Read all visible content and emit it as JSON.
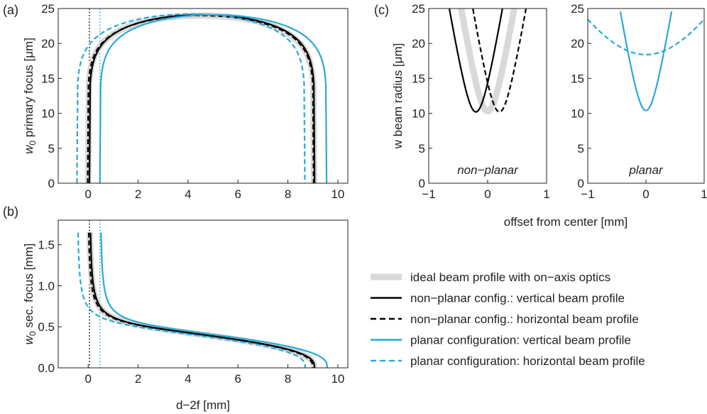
{
  "colors": {
    "ideal": "#d9d9d9",
    "nonplanar": "#000000",
    "planar": "#29a9d6",
    "axis": "#222222"
  },
  "legend": {
    "placement": "bottom-right",
    "items": [
      {
        "label": "ideal beam profile with on−axis optics",
        "color": "#d9d9d9",
        "style": "thick"
      },
      {
        "label": "non−planar config.: vertical beam profile",
        "color": "#000000",
        "style": "solid"
      },
      {
        "label": "non−planar config.: horizontal beam profile",
        "color": "#000000",
        "style": "dashed"
      },
      {
        "label": "planar configuration: vertical beam profile",
        "color": "#29a9d6",
        "style": "solid"
      },
      {
        "label": "planar configuration: horizontal beam profile",
        "color": "#29a9d6",
        "style": "dashed"
      }
    ]
  },
  "chart_data": [
    {
      "panel": "(a)",
      "type": "line",
      "ylabel_sym": "w",
      "ylabel_sub": "0",
      "ylabel_rest": " primary focus [μm]",
      "xlim": [
        -1.2,
        10.4
      ],
      "ylim": [
        0,
        25
      ],
      "xticks": [
        0,
        2,
        4,
        6,
        8,
        10
      ],
      "yticks": [
        0,
        5,
        10,
        15,
        20,
        25
      ],
      "vlines": [
        {
          "x": 0.05,
          "color": "#000000"
        },
        {
          "x": 0.47,
          "color": "#29a9d6"
        }
      ],
      "series": [
        {
          "role": "ideal",
          "color": "#d9d9d9",
          "dash": "solid",
          "x_start": 0.0,
          "x_end": 9.05,
          "peak": 24.0,
          "peak_x": 4.5
        },
        {
          "role": "nonplanar-vertical",
          "color": "#000000",
          "dash": "solid",
          "x_start": 0.05,
          "x_end": 9.07,
          "peak": 24.1,
          "peak_x": 4.55
        },
        {
          "role": "nonplanar-horizontal",
          "color": "#000000",
          "dash": "dashed",
          "x_start": -0.02,
          "x_end": 9.03,
          "peak": 24.0,
          "peak_x": 4.5
        },
        {
          "role": "planar-vertical",
          "color": "#29a9d6",
          "dash": "solid",
          "x_start": 0.47,
          "x_end": 9.55,
          "peak": 24.1,
          "peak_x": 4.7
        },
        {
          "role": "planar-horizontal",
          "color": "#29a9d6",
          "dash": "dashed",
          "x_start": -0.45,
          "x_end": 8.68,
          "peak": 24.2,
          "peak_x": 4.1
        }
      ]
    },
    {
      "panel": "(b)",
      "type": "line",
      "ylabel_sym": "w",
      "ylabel_sub": "0",
      "ylabel_rest": " sec. focus [mm]",
      "xlabel": "d−2f [mm]",
      "xlim": [
        -1.2,
        10.4
      ],
      "ylim": [
        0,
        1.8
      ],
      "xticks": [
        0,
        2,
        4,
        6,
        8,
        10
      ],
      "yticks": [
        0.0,
        0.5,
        1.0,
        1.5
      ],
      "ytick_labels": [
        "0.0",
        "0.5",
        "1.0",
        "1.5"
      ],
      "vlines": [
        {
          "x": 0.05,
          "color": "#000000"
        },
        {
          "x": 0.47,
          "color": "#29a9d6"
        }
      ],
      "series": [
        {
          "role": "ideal",
          "color": "#d9d9d9",
          "dash": "solid",
          "x_start": 0.02,
          "x_end": 9.05
        },
        {
          "role": "nonplanar-vertical",
          "color": "#000000",
          "dash": "solid",
          "x_start": 0.05,
          "x_end": 9.07
        },
        {
          "role": "nonplanar-horizontal",
          "color": "#000000",
          "dash": "dashed",
          "x_start": -0.02,
          "x_end": 9.0
        },
        {
          "role": "planar-vertical",
          "color": "#29a9d6",
          "dash": "solid",
          "x_start": 0.47,
          "x_end": 9.58
        },
        {
          "role": "planar-horizontal",
          "color": "#29a9d6",
          "dash": "dashed",
          "x_start": -0.45,
          "x_end": 8.7
        }
      ]
    },
    {
      "panel": "(c)",
      "subtitle": "non−planar",
      "type": "line",
      "ylabel": "w beam radius [μm]",
      "xlim": [
        -1,
        1
      ],
      "ylim": [
        0,
        25
      ],
      "xticks": [
        -1,
        0,
        1
      ],
      "xtick_labels": [
        "−1",
        "0",
        "1"
      ],
      "yticks": [
        0,
        5,
        10,
        15,
        20,
        25
      ],
      "series": [
        {
          "role": "ideal",
          "color": "#d9d9d9",
          "dash": "solid",
          "center": 0.0,
          "min": 10.3
        },
        {
          "role": "nonplanar-vertical",
          "color": "#000000",
          "dash": "solid",
          "center": -0.2,
          "min": 10.2
        },
        {
          "role": "nonplanar-horizontal",
          "color": "#000000",
          "dash": "dashed",
          "center": 0.2,
          "min": 10.2
        }
      ]
    },
    {
      "subtitle": "planar",
      "type": "line",
      "xlabel": "offset from center [mm]",
      "xlim": [
        -1,
        1
      ],
      "ylim": [
        0,
        25
      ],
      "xticks": [
        -1,
        0,
        1
      ],
      "xtick_labels": [
        "−1",
        "0",
        "1"
      ],
      "yticks": [
        0,
        5,
        10,
        15,
        20,
        25
      ],
      "series": [
        {
          "role": "planar-vertical",
          "color": "#29a9d6",
          "dash": "solid",
          "center": 0.0,
          "min": 10.4
        },
        {
          "role": "planar-horizontal",
          "color": "#29a9d6",
          "dash": "dashed",
          "center": 0.0,
          "min": 18.4
        }
      ]
    }
  ]
}
